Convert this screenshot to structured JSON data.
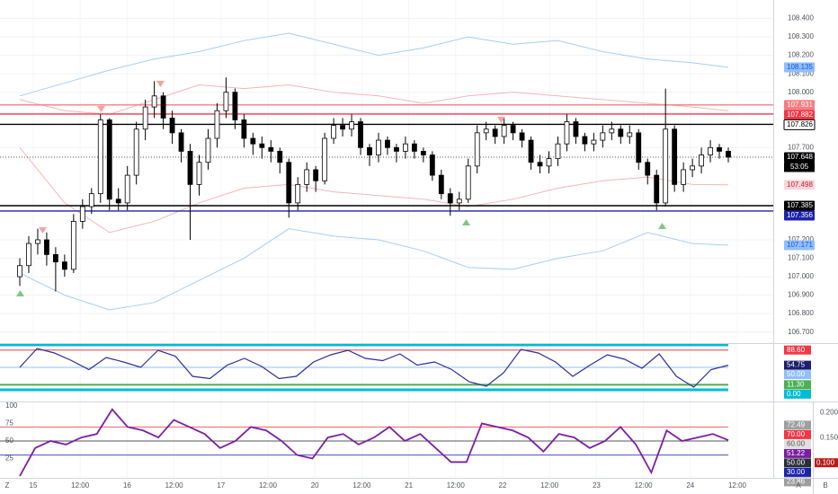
{
  "chart_data": {
    "type": "candlestick",
    "ylim": [
      106.64,
      108.5
    ],
    "grid": true,
    "yticks": [
      {
        "value": 108.4,
        "label": "108.400"
      },
      {
        "value": 108.3,
        "label": "108.300"
      },
      {
        "value": 108.2,
        "label": "108.200"
      },
      {
        "value": 108.1,
        "label": "108.100"
      },
      {
        "value": 108.0,
        "label": "108.000"
      },
      {
        "value": 107.7,
        "label": "107.700"
      },
      {
        "value": 107.2,
        "label": "107.200"
      },
      {
        "value": 107.1,
        "label": "107.100"
      },
      {
        "value": 107.0,
        "label": "107.000"
      },
      {
        "value": 106.9,
        "label": "106.900"
      },
      {
        "value": 106.8,
        "label": "106.800"
      },
      {
        "value": 106.7,
        "label": "106.700"
      }
    ],
    "up_color": "#ffffff",
    "down_color": "#000000",
    "candles": [
      [
        107.0,
        107.1,
        106.95,
        107.06
      ],
      [
        107.06,
        107.22,
        107.02,
        107.18
      ],
      [
        107.18,
        107.26,
        107.12,
        107.2
      ],
      [
        107.2,
        107.24,
        107.06,
        107.12
      ],
      [
        107.12,
        107.16,
        106.92,
        107.08
      ],
      [
        107.08,
        107.12,
        107.0,
        107.04
      ],
      [
        107.04,
        107.34,
        107.02,
        107.3
      ],
      [
        107.3,
        107.42,
        107.26,
        107.38
      ],
      [
        107.38,
        107.48,
        107.34,
        107.45
      ],
      [
        107.45,
        107.88,
        107.4,
        107.85
      ],
      [
        107.85,
        107.86,
        107.36,
        107.42
      ],
      [
        107.42,
        107.48,
        107.36,
        107.4
      ],
      [
        107.4,
        107.6,
        107.36,
        107.55
      ],
      [
        107.55,
        107.84,
        107.5,
        107.8
      ],
      [
        107.8,
        107.96,
        107.74,
        107.92
      ],
      [
        107.92,
        108.06,
        107.86,
        107.98
      ],
      [
        107.98,
        108.0,
        107.8,
        107.86
      ],
      [
        107.86,
        107.9,
        107.72,
        107.78
      ],
      [
        107.78,
        107.8,
        107.62,
        107.68
      ],
      [
        107.68,
        107.72,
        107.2,
        107.5
      ],
      [
        107.5,
        107.66,
        107.44,
        107.62
      ],
      [
        107.62,
        107.8,
        107.58,
        107.75
      ],
      [
        107.75,
        107.94,
        107.7,
        107.9
      ],
      [
        107.9,
        108.08,
        107.86,
        108.0
      ],
      [
        108.0,
        108.02,
        107.8,
        107.85
      ],
      [
        107.85,
        107.88,
        107.7,
        107.75
      ],
      [
        107.75,
        107.78,
        107.66,
        107.72
      ],
      [
        107.72,
        107.76,
        107.64,
        107.7
      ],
      [
        107.7,
        107.74,
        107.62,
        107.68
      ],
      [
        107.68,
        107.7,
        107.56,
        107.62
      ],
      [
        107.62,
        107.64,
        107.32,
        107.4
      ],
      [
        107.4,
        107.54,
        107.36,
        107.5
      ],
      [
        107.5,
        107.62,
        107.46,
        107.58
      ],
      [
        107.58,
        107.6,
        107.46,
        107.52
      ],
      [
        107.52,
        107.78,
        107.5,
        107.75
      ],
      [
        107.75,
        107.86,
        107.72,
        107.82
      ],
      [
        107.82,
        107.86,
        107.76,
        107.8
      ],
      [
        107.8,
        107.88,
        107.76,
        107.84
      ],
      [
        107.84,
        107.86,
        107.66,
        107.7
      ],
      [
        107.7,
        107.72,
        107.6,
        107.66
      ],
      [
        107.66,
        107.78,
        107.62,
        107.74
      ],
      [
        107.74,
        107.76,
        107.66,
        107.7
      ],
      [
        107.7,
        107.72,
        107.62,
        107.68
      ],
      [
        107.68,
        107.76,
        107.64,
        107.72
      ],
      [
        107.72,
        107.74,
        107.64,
        107.68
      ],
      [
        107.68,
        107.7,
        107.62,
        107.66
      ],
      [
        107.66,
        107.68,
        107.52,
        107.55
      ],
      [
        107.55,
        107.58,
        107.42,
        107.45
      ],
      [
        107.45,
        107.48,
        107.33,
        107.4
      ],
      [
        107.4,
        107.46,
        107.36,
        107.42
      ],
      [
        107.42,
        107.64,
        107.4,
        107.6
      ],
      [
        107.6,
        107.82,
        107.56,
        107.78
      ],
      [
        107.78,
        107.84,
        107.74,
        107.8
      ],
      [
        107.8,
        107.82,
        107.72,
        107.76
      ],
      [
        107.76,
        107.86,
        107.72,
        107.82
      ],
      [
        107.82,
        107.84,
        107.74,
        107.78
      ],
      [
        107.78,
        107.8,
        107.7,
        107.74
      ],
      [
        107.74,
        107.76,
        107.58,
        107.62
      ],
      [
        107.62,
        107.66,
        107.56,
        107.6
      ],
      [
        107.6,
        107.68,
        107.56,
        107.64
      ],
      [
        107.64,
        107.76,
        107.6,
        107.72
      ],
      [
        107.72,
        107.88,
        107.68,
        107.84
      ],
      [
        107.84,
        107.86,
        107.72,
        107.76
      ],
      [
        107.76,
        107.78,
        107.68,
        107.72
      ],
      [
        107.72,
        107.78,
        107.68,
        107.74
      ],
      [
        107.74,
        107.82,
        107.7,
        107.78
      ],
      [
        107.78,
        107.84,
        107.74,
        107.8
      ],
      [
        107.8,
        107.82,
        107.72,
        107.76
      ],
      [
        107.76,
        107.82,
        107.72,
        107.78
      ],
      [
        107.78,
        107.8,
        107.58,
        107.62
      ],
      [
        107.62,
        107.64,
        107.5,
        107.55
      ],
      [
        107.55,
        107.58,
        107.36,
        107.4
      ],
      [
        107.4,
        108.02,
        107.38,
        107.8
      ],
      [
        107.8,
        107.82,
        107.46,
        107.5
      ],
      [
        107.5,
        107.62,
        107.46,
        107.58
      ],
      [
        107.58,
        107.64,
        107.54,
        107.6
      ],
      [
        107.6,
        107.7,
        107.56,
        107.66
      ],
      [
        107.66,
        107.74,
        107.62,
        107.7
      ],
      [
        107.7,
        107.72,
        107.64,
        107.68
      ],
      [
        107.68,
        107.7,
        107.62,
        107.648
      ]
    ],
    "band_index": [
      0,
      5,
      10,
      15,
      20,
      25,
      30,
      35,
      40,
      45,
      50,
      55,
      60,
      65,
      70,
      75,
      79
    ],
    "bands": [
      {
        "color": "#a9cdf0",
        "values": [
          107.98,
          108.05,
          108.12,
          108.18,
          108.22,
          108.28,
          108.32,
          108.26,
          108.2,
          108.24,
          108.3,
          108.26,
          108.28,
          108.22,
          108.18,
          108.16,
          108.135
        ]
      },
      {
        "color": "#a9cdf0",
        "values": [
          107.02,
          106.9,
          106.82,
          106.86,
          106.98,
          107.1,
          107.26,
          107.22,
          107.2,
          107.14,
          107.05,
          107.04,
          107.1,
          107.14,
          107.24,
          107.18,
          107.171
        ]
      },
      {
        "color": "#f5b5b5",
        "values": [
          107.96,
          107.9,
          107.88,
          107.96,
          108.04,
          108.02,
          108.04,
          108.0,
          107.98,
          107.94,
          107.98,
          108.0,
          107.98,
          107.96,
          107.94,
          107.92,
          107.9
        ]
      },
      {
        "color": "#f5b5b5",
        "values": [
          107.7,
          107.4,
          107.24,
          107.3,
          107.4,
          107.48,
          107.5,
          107.46,
          107.44,
          107.42,
          107.38,
          107.42,
          107.48,
          107.52,
          107.54,
          107.5,
          107.498
        ]
      }
    ],
    "price_labels": [
      {
        "value": 108.135,
        "color": "#90bff9",
        "text_color": "#1e53e5",
        "line": false
      },
      {
        "value": 107.931,
        "color": "#f77c80",
        "text_color": "#ffffff",
        "line": true
      },
      {
        "value": 107.882,
        "color": "#f23645",
        "text_color": "#ffffff",
        "line": true
      },
      {
        "value": 107.826,
        "color": "#ffffff",
        "text_color": "#000000",
        "line": true
      },
      {
        "value": 107.648,
        "color": "#000000",
        "text_color": "#ffffff",
        "line": false
      },
      {
        "value": 107.498,
        "color": "#fbd5d7",
        "text_color": "#b22833",
        "line": false
      },
      {
        "value": 107.385,
        "color": "#000000",
        "text_color": "#ffffff",
        "line": true
      },
      {
        "value": 107.356,
        "color": "#1e22aa",
        "text_color": "#ffffff",
        "line": true
      },
      {
        "value": 107.171,
        "color": "#90bff9",
        "text_color": "#1e53e5",
        "line": false
      }
    ],
    "countdown": "53:05",
    "time_labels": [
      "15",
      "12:00",
      "16",
      "12:00",
      "17",
      "12:00",
      "20",
      "12:00",
      "21",
      "12:00",
      "22",
      "12:00",
      "23",
      "12:00",
      "24",
      "12:00"
    ],
    "oscillator": {
      "ylim": [
        -26,
        102
      ],
      "color": "#2a2e9c",
      "values": [
        50,
        92,
        82,
        65,
        45,
        72,
        62,
        50,
        88,
        75,
        30,
        25,
        55,
        70,
        52,
        25,
        30,
        62,
        78,
        88,
        70,
        65,
        80,
        55,
        62,
        45,
        18,
        8,
        38,
        90,
        82,
        62,
        30,
        55,
        78,
        68,
        48,
        80,
        30,
        6,
        45,
        54.75
      ],
      "levels": [
        {
          "value": 100,
          "label": "100.00",
          "color": "#00bcd4",
          "line": true,
          "width": 3,
          "show": false
        },
        {
          "value": 88.6,
          "label": "88.60",
          "color": "#f23645",
          "line": true,
          "width": 1,
          "show": true
        },
        {
          "value": 54.75,
          "label": "54.75",
          "color": "#1e1e6e",
          "line": false,
          "width": 1,
          "show": true
        },
        {
          "value": 50,
          "label": "50.00",
          "color": "#90bff9",
          "line": true,
          "width": 1,
          "show": true
        },
        {
          "value": 11.3,
          "label": "11.30",
          "color": "#4caf50",
          "line": true,
          "width": 2,
          "show": true
        },
        {
          "value": 0,
          "label": "0.00",
          "color": "#00bcd4",
          "line": true,
          "width": 3,
          "show": true
        }
      ]
    },
    "rsi": {
      "ylim": [
        -2.5,
        105
      ],
      "y2lim": [
        0.07,
        0.22
      ],
      "color": "#7b1fa2",
      "yticks": [
        100,
        75,
        50,
        25
      ],
      "y2ticks": [
        {
          "value": 0.2,
          "label": "0.200"
        },
        {
          "value": 0.15,
          "label": "0.150"
        }
      ],
      "y2_label": {
        "value": 0.1,
        "label": "0.100",
        "color": "#b71c1c"
      },
      "values": [
        0,
        40,
        50,
        45,
        55,
        60,
        95,
        70,
        65,
        55,
        80,
        70,
        60,
        40,
        50,
        70,
        65,
        50,
        30,
        25,
        55,
        60,
        45,
        55,
        70,
        50,
        60,
        40,
        20,
        20,
        75,
        70,
        65,
        55,
        35,
        60,
        55,
        40,
        50,
        70,
        45,
        5,
        65,
        50,
        55,
        60,
        51.22
      ],
      "levels": [
        {
          "value": 72.49,
          "label": "72.49",
          "color": "#9e9e9e",
          "line": false
        },
        {
          "value": 70,
          "label": "70.00",
          "color": "#f23645",
          "line": true
        },
        {
          "value": 60,
          "label": "60.00",
          "color": "#e0e0e0",
          "line": false
        },
        {
          "value": 51.22,
          "label": "51.22",
          "color": "#7b1fa2",
          "line": false
        },
        {
          "value": 50,
          "label": "50.00",
          "color": "#2a2e39",
          "line": true
        },
        {
          "value": 30,
          "label": "30.00",
          "color": "#1e22aa",
          "line": true
        },
        {
          "value": 23.86,
          "label": "23.86",
          "color": "#9e9e9e",
          "line": false
        }
      ]
    },
    "corner_labels": [
      "Z",
      "A",
      "B"
    ]
  }
}
